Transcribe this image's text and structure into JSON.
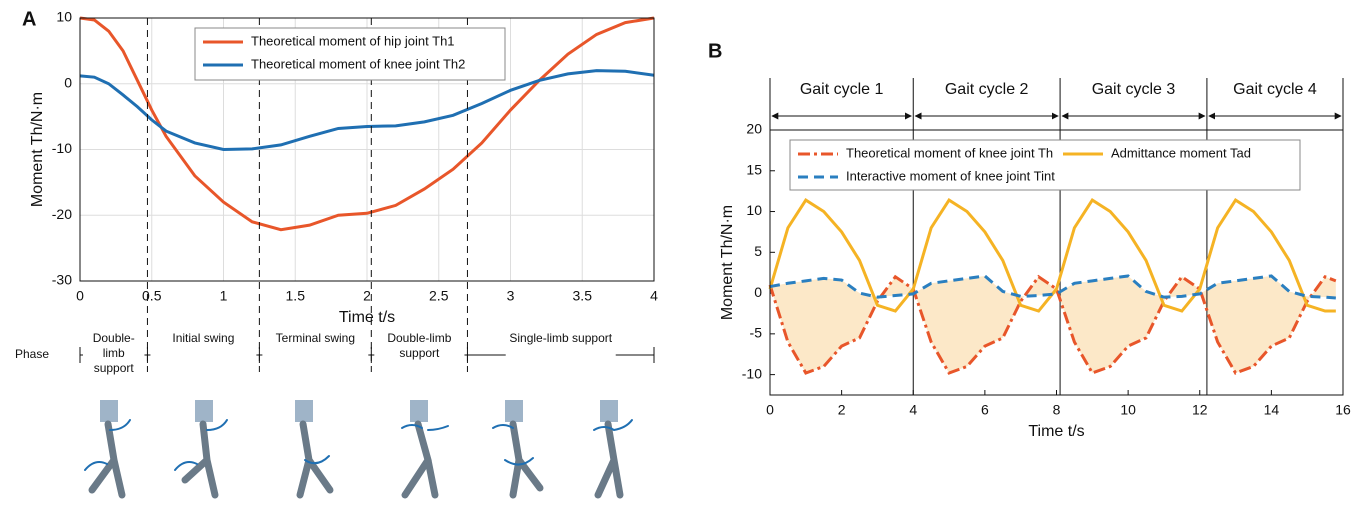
{
  "chart_data": [
    {
      "type": "line",
      "panel": "A",
      "xlabel": "Time t/s",
      "ylabel": "Moment Th/N·m",
      "x": [
        0,
        0.1,
        0.2,
        0.3,
        0.4,
        0.5,
        0.6,
        0.8,
        1.0,
        1.2,
        1.4,
        1.6,
        1.8,
        2.0,
        2.2,
        2.4,
        2.6,
        2.8,
        3.0,
        3.2,
        3.4,
        3.6,
        3.8,
        4.0
      ],
      "series": [
        {
          "name": "Theoretical moment of hip joint Th1",
          "color": "#e8562a",
          "style": "solid",
          "values": [
            10,
            9.7,
            8,
            5,
            0.5,
            -4,
            -8,
            -14,
            -18,
            -21,
            -22.2,
            -21.5,
            -20,
            -19.7,
            -18.5,
            -16,
            -13,
            -9,
            -4,
            0.5,
            4.5,
            7.5,
            9.3,
            10
          ]
        },
        {
          "name": "Theoretical moment of knee joint Th2",
          "color": "#1f6fb2",
          "style": "solid",
          "values": [
            1.2,
            1,
            0,
            -1.7,
            -3.5,
            -5.5,
            -7.2,
            -9,
            -10,
            -9.9,
            -9.3,
            -8,
            -6.8,
            -6.5,
            -6.4,
            -5.8,
            -4.8,
            -3,
            -1,
            0.5,
            1.5,
            2,
            1.9,
            1.3
          ]
        }
      ],
      "xlim": [
        0,
        4
      ],
      "ylim": [
        -30,
        10
      ],
      "xticks": [
        0,
        0.5,
        1,
        1.5,
        2,
        2.5,
        3,
        3.5,
        4
      ],
      "yticks": [
        -30,
        -20,
        -10,
        0,
        10
      ],
      "grid": true,
      "legend": "top",
      "phase_title": "Phase",
      "phases": [
        {
          "label": "Double-limb support",
          "start": 0,
          "end": 0.47
        },
        {
          "label": "Initial swing",
          "start": 0.47,
          "end": 1.25
        },
        {
          "label": "Terminal swing",
          "start": 1.25,
          "end": 2.03
        },
        {
          "label": "Double-limb support",
          "start": 2.03,
          "end": 2.7
        },
        {
          "label": "Single-limb support",
          "start": 2.7,
          "end": 4
        }
      ]
    },
    {
      "type": "line",
      "panel": "B",
      "xlabel": "Time t/s",
      "ylabel": "Moment Th/N·m",
      "x": [
        0,
        0.5,
        1,
        1.5,
        2,
        2.5,
        3,
        3.5,
        4,
        4.5,
        5,
        5.5,
        6,
        6.5,
        7,
        7.5,
        8,
        8.5,
        9,
        9.5,
        10,
        10.5,
        11,
        11.5,
        12,
        12.5,
        13,
        13.5,
        14,
        14.5,
        15,
        15.5,
        15.8
      ],
      "series": [
        {
          "name": "Theoretical moment of knee joint Th",
          "color": "#e8562a",
          "style": "dashdot",
          "values": [
            1,
            -6,
            -9.8,
            -9,
            -6.5,
            -5.5,
            -1,
            2,
            0.5,
            -6,
            -9.8,
            -9,
            -6.5,
            -5.5,
            -1,
            2,
            0.5,
            -6,
            -9.8,
            -9,
            -6.5,
            -5.5,
            -1,
            2,
            0.5,
            -6,
            -9.8,
            -9,
            -6.5,
            -5.5,
            -1,
            2,
            1.5
          ]
        },
        {
          "name": "Admittance moment Tad",
          "color": "#f5b324",
          "style": "solid",
          "values": [
            0.5,
            8,
            11.4,
            10,
            7.5,
            4,
            -1.5,
            -2.2,
            0.5,
            8,
            11.4,
            10,
            7.5,
            4,
            -1.5,
            -2.2,
            0.5,
            8,
            11.4,
            10,
            7.5,
            4,
            -1.5,
            -2.2,
            0.5,
            8,
            11.4,
            10,
            7.5,
            4,
            -1.5,
            -2.2,
            -2.2
          ]
        },
        {
          "name": "Interactive moment of knee joint Tint",
          "color": "#2a7fc0",
          "style": "dashed",
          "values": [
            0.8,
            1.2,
            1.5,
            1.8,
            1.6,
            0,
            -0.5,
            -0.3,
            -0.1,
            1.2,
            1.5,
            1.8,
            2.1,
            0.2,
            -0.4,
            -0.3,
            -0.1,
            1.2,
            1.5,
            1.8,
            2.1,
            0.2,
            -0.5,
            -0.4,
            -0.1,
            1.2,
            1.5,
            1.8,
            2.1,
            0.2,
            -0.4,
            -0.5,
            -0.6
          ]
        }
      ],
      "fill_color": "#fce8c8",
      "xlim": [
        0,
        16
      ],
      "ylim": [
        -12.5,
        20
      ],
      "xticks": [
        0,
        2,
        4,
        6,
        8,
        10,
        12,
        14,
        16
      ],
      "yticks": [
        -10,
        -5,
        0,
        5,
        10,
        15,
        20
      ],
      "grid": false,
      "legend": "top",
      "gait_cycles": [
        {
          "label": "Gait cycle 1",
          "start": 0,
          "end": 4
        },
        {
          "label": "Gait cycle 2",
          "start": 4,
          "end": 8.1
        },
        {
          "label": "Gait cycle 3",
          "start": 8.1,
          "end": 12.2
        },
        {
          "label": "Gait cycle 4",
          "start": 12.2,
          "end": 16
        }
      ]
    }
  ]
}
